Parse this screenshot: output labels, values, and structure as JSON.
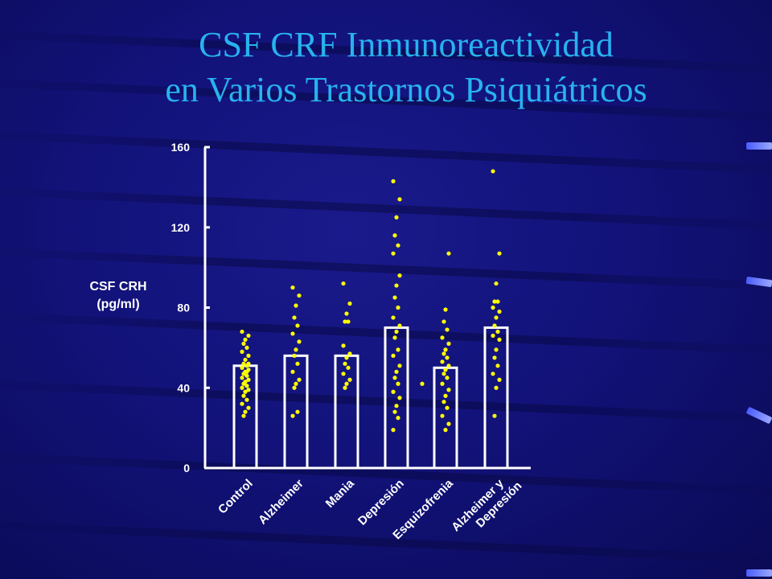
{
  "title": {
    "line1": "CSF CRF Inmunoreactividad",
    "line2": "en Varios Trastornos Psiquiátricos"
  },
  "colors": {
    "title": "#27b3f0",
    "dots": "#ffff00",
    "axis": "#ffffff"
  },
  "chart_data": {
    "type": "bar",
    "ylabel_line1": "CSF CRH",
    "ylabel_line2": "(pg/ml)",
    "ylim": [
      0,
      160
    ],
    "yticks": [
      0,
      40,
      80,
      120,
      160
    ],
    "categories": [
      [
        "Control"
      ],
      [
        "Alzheimer"
      ],
      [
        "Mania"
      ],
      [
        "Depresión"
      ],
      [
        "Esquizofrenia"
      ],
      [
        "Alzheimer y",
        "Depresión"
      ]
    ],
    "values": [
      51,
      56,
      56,
      70,
      50,
      70
    ],
    "points": [
      [
        68,
        66,
        64,
        62,
        60,
        58,
        56,
        54,
        52,
        51,
        50,
        49,
        48,
        47,
        46,
        45,
        44,
        43,
        42,
        41,
        40,
        39,
        38,
        36,
        34,
        32,
        30,
        28,
        26,
        48,
        50,
        52
      ],
      [
        90,
        86,
        81,
        75,
        71,
        67,
        63,
        59,
        56,
        52,
        48,
        44,
        42,
        40,
        28,
        26
      ],
      [
        92,
        82,
        77,
        73,
        73,
        61,
        57,
        55,
        52,
        50,
        47,
        44,
        42,
        40
      ],
      [
        143,
        134,
        125,
        116,
        111,
        107,
        96,
        91,
        85,
        80,
        75,
        71,
        68,
        65,
        59,
        56,
        51,
        48,
        45,
        42,
        38,
        35,
        31,
        28,
        25,
        19
      ],
      [
        42,
        107,
        79,
        73,
        69,
        65,
        62,
        59,
        57,
        55,
        53,
        51,
        49,
        47,
        45,
        42,
        39,
        36,
        33,
        30,
        26,
        22,
        19
      ],
      [
        148,
        107,
        92,
        83,
        83,
        80,
        78,
        75,
        71,
        68,
        66,
        64,
        59,
        55,
        51,
        47,
        44,
        40,
        26
      ]
    ]
  }
}
